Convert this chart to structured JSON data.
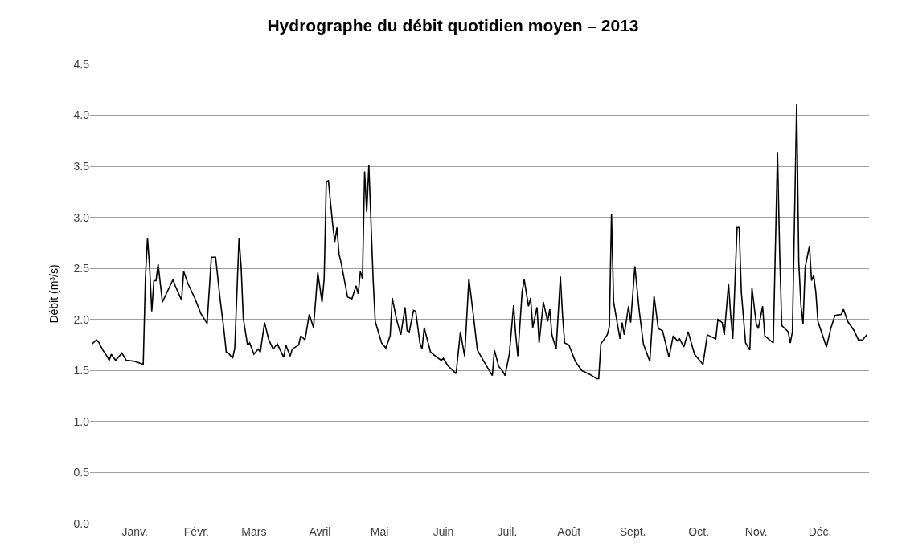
{
  "chart_data": {
    "type": "line",
    "title": "Hydrographe du débit quotidien moyen – 2013",
    "ylabel": "Débit (m³/s)",
    "x": [
      "2013-01-01",
      "2013-01-03",
      "2013-01-04",
      "2013-01-06",
      "2013-01-08",
      "2013-01-09",
      "2013-01-10",
      "2013-01-12",
      "2013-01-15",
      "2013-01-17",
      "2013-01-21",
      "2013-01-25",
      "2013-01-26",
      "2013-01-27",
      "2013-01-28",
      "2013-01-29",
      "2013-01-30",
      "2013-01-31",
      "2013-02-01",
      "2013-02-03",
      "2013-02-05",
      "2013-02-08",
      "2013-02-09",
      "2013-02-12",
      "2013-02-13",
      "2013-02-15",
      "2013-02-18",
      "2013-02-21",
      "2013-02-24",
      "2013-02-26",
      "2013-02-28",
      "2013-03-02",
      "2013-03-04",
      "2013-03-05",
      "2013-03-06",
      "2013-03-08",
      "2013-03-09",
      "2013-03-11",
      "2013-03-12",
      "2013-03-13",
      "2013-03-15",
      "2013-03-16",
      "2013-03-18",
      "2013-03-20",
      "2013-03-21",
      "2013-03-23",
      "2013-03-25",
      "2013-03-27",
      "2013-03-29",
      "2013-04-01",
      "2013-04-02",
      "2013-04-04",
      "2013-04-05",
      "2013-04-08",
      "2013-04-09",
      "2013-04-11",
      "2013-04-13",
      "2013-04-15",
      "2013-04-17",
      "2013-04-19",
      "2013-04-20",
      "2013-04-21",
      "2013-04-22",
      "2013-04-24",
      "2013-04-25",
      "2013-04-26",
      "2013-04-27",
      "2013-04-28",
      "2013-05-01",
      "2013-05-03",
      "2013-05-05",
      "2013-05-06",
      "2013-05-07",
      "2013-05-08",
      "2013-05-09",
      "2013-05-10",
      "2013-05-11",
      "2013-05-13",
      "2013-05-14",
      "2013-05-17",
      "2013-05-19",
      "2013-05-21",
      "2013-05-22",
      "2013-05-24",
      "2013-05-26",
      "2013-05-28",
      "2013-05-29",
      "2013-05-30",
      "2013-06-01",
      "2013-06-02",
      "2013-06-04",
      "2013-06-05",
      "2013-06-06",
      "2013-06-09",
      "2013-06-12",
      "2013-06-14",
      "2013-06-15",
      "2013-06-17",
      "2013-06-21",
      "2013-06-23",
      "2013-06-25",
      "2013-06-27",
      "2013-06-29",
      "2013-07-01",
      "2013-07-04",
      "2013-07-08",
      "2013-07-09",
      "2013-07-11",
      "2013-07-13",
      "2013-07-14",
      "2013-07-16",
      "2013-07-18",
      "2013-07-19",
      "2013-07-20",
      "2013-07-22",
      "2013-07-23",
      "2013-07-25",
      "2013-07-26",
      "2013-07-27",
      "2013-07-29",
      "2013-07-30",
      "2013-08-01",
      "2013-08-03",
      "2013-08-04",
      "2013-08-05",
      "2013-08-07",
      "2013-08-09",
      "2013-08-10",
      "2013-08-11",
      "2013-08-13",
      "2013-08-16",
      "2013-08-19",
      "2013-08-23",
      "2013-08-26",
      "2013-08-27",
      "2013-08-28",
      "2013-08-31",
      "2013-09-01",
      "2013-09-02",
      "2013-09-03",
      "2013-09-06",
      "2013-09-07",
      "2013-09-08",
      "2013-09-10",
      "2013-09-11",
      "2013-09-13",
      "2013-09-15",
      "2013-09-17",
      "2013-09-20",
      "2013-09-22",
      "2013-09-24",
      "2013-09-26",
      "2013-09-29",
      "2013-10-01",
      "2013-10-03",
      "2013-10-04",
      "2013-10-06",
      "2013-10-08",
      "2013-10-11",
      "2013-10-15",
      "2013-10-17",
      "2013-10-19",
      "2013-10-21",
      "2013-10-22",
      "2013-10-24",
      "2013-10-25",
      "2013-10-27",
      "2013-10-28",
      "2013-10-29",
      "2013-10-31",
      "2013-11-01",
      "2013-11-02",
      "2013-11-04",
      "2013-11-06",
      "2013-11-07",
      "2013-11-09",
      "2013-11-10",
      "2013-11-12",
      "2013-11-13",
      "2013-11-17",
      "2013-11-19",
      "2013-11-20",
      "2013-11-21",
      "2013-11-24",
      "2013-11-25",
      "2013-11-26",
      "2013-11-28",
      "2013-11-29",
      "2013-11-30",
      "2013-12-01",
      "2013-12-02",
      "2013-12-04",
      "2013-12-05",
      "2013-12-06",
      "2013-12-07",
      "2013-12-08",
      "2013-12-12",
      "2013-12-14",
      "2013-12-16",
      "2013-12-19",
      "2013-12-20",
      "2013-12-22",
      "2013-12-25",
      "2013-12-27",
      "2013-12-29",
      "2013-12-31"
    ],
    "series": [
      {
        "color": "#000000",
        "values": [
          1.76,
          1.8,
          1.78,
          1.7,
          1.64,
          1.6,
          1.66,
          1.6,
          1.67,
          1.6,
          1.59,
          1.56,
          2.4,
          2.8,
          2.51,
          2.08,
          2.38,
          2.38,
          2.54,
          2.17,
          2.26,
          2.39,
          2.33,
          2.19,
          2.47,
          2.35,
          2.22,
          2.06,
          1.96,
          2.61,
          2.61,
          2.22,
          1.88,
          1.68,
          1.67,
          1.62,
          1.72,
          2.8,
          2.51,
          2.01,
          1.75,
          1.77,
          1.66,
          1.71,
          1.68,
          1.97,
          1.8,
          1.71,
          1.76,
          1.63,
          1.75,
          1.64,
          1.71,
          1.75,
          1.84,
          1.8,
          2.05,
          1.92,
          2.46,
          2.17,
          2.4,
          3.35,
          3.36,
          2.93,
          2.76,
          2.9,
          2.64,
          2.55,
          2.22,
          2.2,
          2.33,
          2.25,
          2.47,
          2.4,
          3.45,
          3.05,
          3.51,
          2.4,
          1.98,
          1.77,
          1.72,
          1.84,
          2.21,
          2.0,
          1.85,
          2.12,
          1.89,
          1.88,
          2.09,
          2.08,
          1.77,
          1.71,
          1.92,
          1.68,
          1.63,
          1.6,
          1.62,
          1.55,
          1.47,
          1.88,
          1.64,
          2.4,
          2.06,
          1.7,
          1.59,
          1.45,
          1.7,
          1.54,
          1.49,
          1.45,
          1.66,
          2.14,
          1.85,
          1.64,
          2.27,
          2.39,
          2.13,
          2.21,
          1.92,
          2.12,
          1.77,
          2.17,
          1.98,
          2.1,
          1.85,
          1.71,
          2.42,
          2.04,
          1.77,
          1.75,
          1.59,
          1.5,
          1.46,
          1.42,
          1.42,
          1.76,
          1.85,
          1.93,
          3.03,
          2.17,
          1.81,
          1.97,
          1.85,
          2.13,
          1.97,
          2.52,
          2.09,
          1.76,
          1.59,
          2.23,
          1.91,
          1.89,
          1.63,
          1.84,
          1.79,
          1.81,
          1.73,
          1.88,
          1.66,
          1.56,
          1.85,
          1.83,
          1.81,
          2.0,
          1.97,
          1.85,
          2.35,
          2.04,
          1.81,
          2.9,
          2.9,
          2.27,
          1.77,
          1.7,
          2.31,
          1.96,
          1.91,
          2.13,
          1.84,
          1.77,
          3.64,
          2.67,
          1.94,
          1.88,
          1.77,
          1.88,
          4.11,
          2.56,
          2.14,
          1.96,
          2.51,
          2.72,
          2.38,
          2.43,
          2.27,
          1.98,
          1.73,
          1.91,
          2.04,
          2.05,
          2.1,
          1.98,
          1.89,
          1.8,
          1.8,
          1.85
        ]
      }
    ],
    "xlim": [
      "2012-12-31",
      "2014-01-01"
    ],
    "xticks": [
      {
        "value": "2013-01-21",
        "label": "Janv."
      },
      {
        "value": "2013-02-19",
        "label": "Févr."
      },
      {
        "value": "2013-03-18",
        "label": "Mars"
      },
      {
        "value": "2013-04-18",
        "label": "Avril"
      },
      {
        "value": "2013-05-16",
        "label": "Mai"
      },
      {
        "value": "2013-06-15",
        "label": "Juin"
      },
      {
        "value": "2013-07-15",
        "label": "Juil."
      },
      {
        "value": "2013-08-13",
        "label": "Août"
      },
      {
        "value": "2013-09-12",
        "label": "Sept."
      },
      {
        "value": "2013-10-13",
        "label": "Oct."
      },
      {
        "value": "2013-11-09",
        "label": "Nov."
      },
      {
        "value": "2013-12-09",
        "label": "Déc."
      }
    ],
    "ylim": [
      0,
      4.5
    ],
    "yticks": [
      {
        "value": 0,
        "label": "0.0"
      },
      {
        "value": 0.5,
        "label": "0.5"
      },
      {
        "value": 1,
        "label": "1.0"
      },
      {
        "value": 1.5,
        "label": "1.5"
      },
      {
        "value": 2,
        "label": "2.0"
      },
      {
        "value": 2.5,
        "label": "2.5"
      },
      {
        "value": 3,
        "label": "3.0"
      },
      {
        "value": 3.5,
        "label": "3.5"
      },
      {
        "value": 4,
        "label": "4.0"
      },
      {
        "value": 4.5,
        "label": "4.5"
      }
    ],
    "grid": "y",
    "marker": "none",
    "line_style": "solid"
  }
}
